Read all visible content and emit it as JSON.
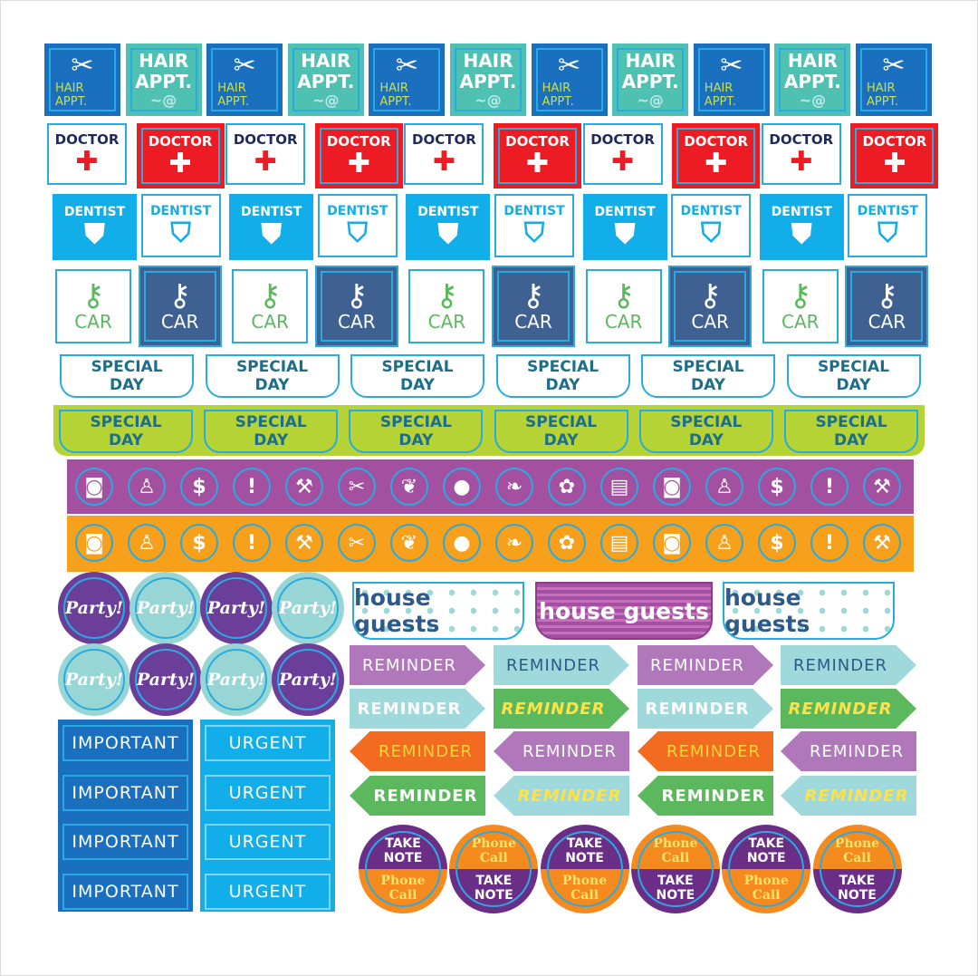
{
  "colors": {
    "blue": "#1a6fbf",
    "teal": "#4fc1b2",
    "red": "#ed1c24",
    "sky": "#12aeea",
    "navy": "#3f6191",
    "green": "#5cb85c",
    "lime": "#b5d334",
    "purple": "#a2509f",
    "orange": "#f7a01c",
    "partyPurple": "#6b3f99",
    "partyTeal": "#98d6d5",
    "ovalPurple": "#6a2e86",
    "ovalOrange": "#f58a1f",
    "important": "#1a6fbf",
    "urgent": "#12aeea",
    "accent": "#29abe2"
  },
  "hair": {
    "label_top": "HAIR",
    "label_bottom": "APPT.",
    "count": 11
  },
  "doctor": {
    "label": "DOCTOR",
    "count": 10
  },
  "dentist": {
    "label": "DENTIST",
    "count": 10
  },
  "car": {
    "label": "CAR",
    "count": 10
  },
  "special_day": {
    "line1": "SPECIAL",
    "line2": "DAY",
    "count": 6
  },
  "icon_strips": {
    "icons": [
      "washer-icon",
      "meditation-icon",
      "money-icon",
      "exclamation-icon",
      "tools-icon",
      "comb-scissors-icon",
      "paw-icon",
      "speech-bubble-icon",
      "leaf-icon",
      "flower-icon",
      "book-icon",
      "washer-icon",
      "meditation-icon",
      "money-icon",
      "exclamation-icon",
      "tools-icon"
    ],
    "strip_colors": [
      "purple",
      "orange"
    ]
  },
  "party": {
    "label": "Party!",
    "count": 8
  },
  "house_guests": {
    "label": "house guests",
    "count": 3
  },
  "important": {
    "label": "IMPORTANT",
    "count": 4
  },
  "urgent": {
    "label": "URGENT",
    "count": 4
  },
  "reminder": {
    "label": "REMINDER",
    "count": 16
  },
  "take_note": {
    "take_line1": "TAKE",
    "take_line2": "NOTE",
    "phone_line1": "Phone",
    "phone_line2": "Call",
    "count": 6
  }
}
